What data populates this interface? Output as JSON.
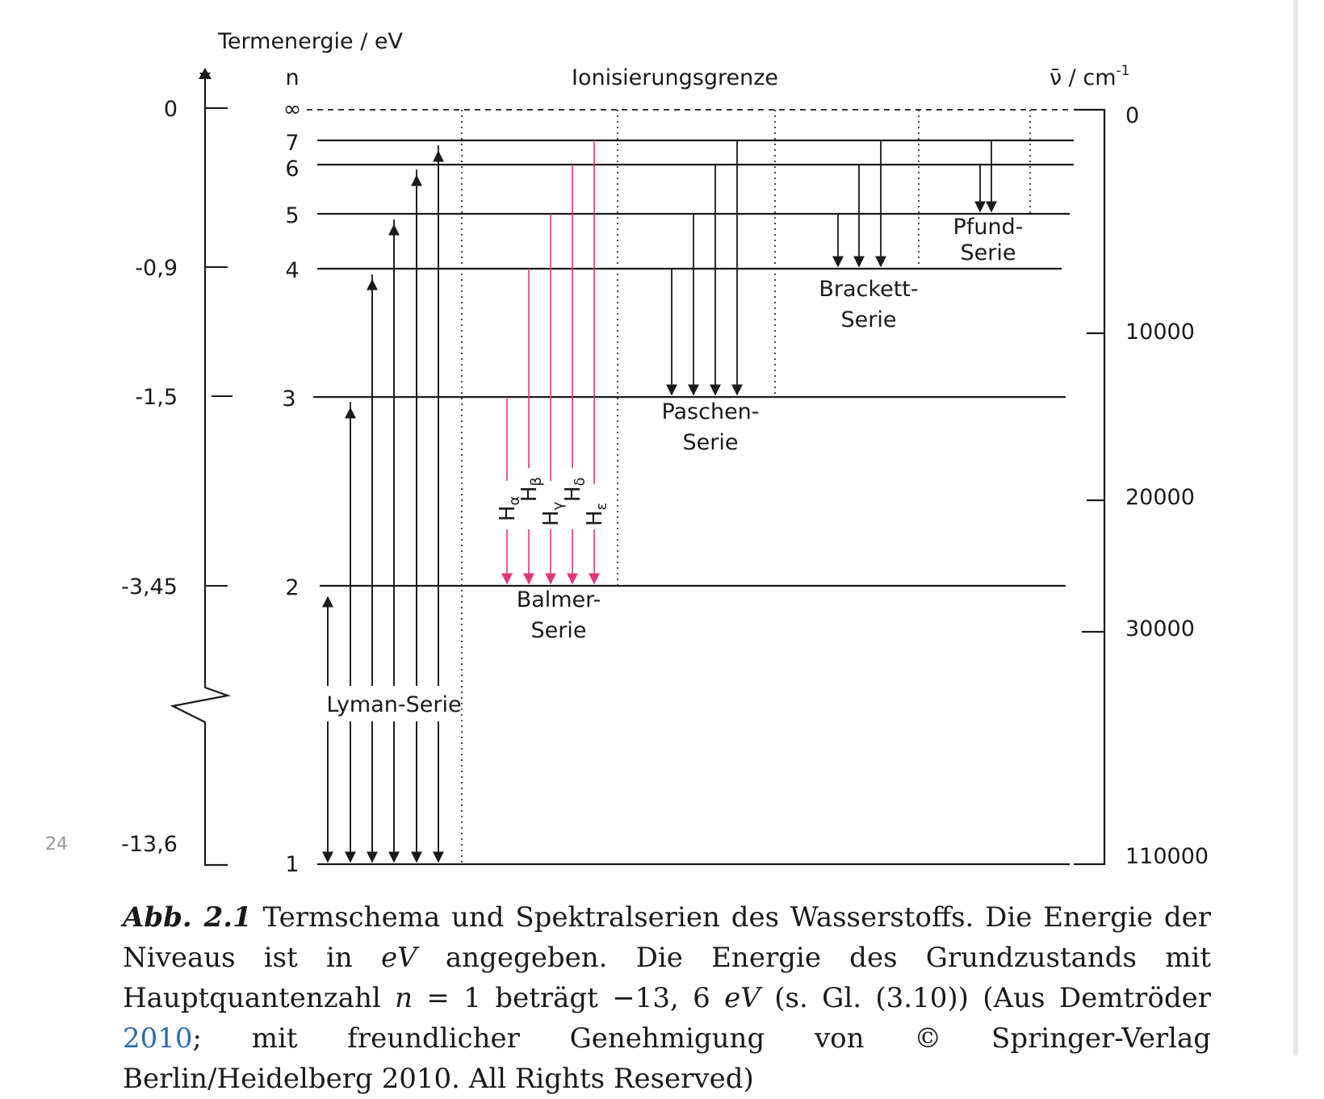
{
  "figure": {
    "y_axis_title": "Termenergie / eV",
    "n_header": "n",
    "ionization_label": "Ionisierungsgrenze",
    "wavenumber_title": "ν̄ / cm",
    "wavenumber_exp": "-1",
    "energy_ticks": [
      "0",
      "-0,9",
      "-1,5",
      "-3,45",
      "-13,6"
    ],
    "n_labels": [
      "∞",
      "7",
      "6",
      "5",
      "4",
      "3",
      "2",
      "1"
    ],
    "wavenumber_ticks": [
      "0",
      "10000",
      "20000",
      "30000",
      "110000"
    ],
    "series": {
      "lyman": "Lyman-Serie",
      "balmer_1": "Balmer-",
      "balmer_2": "Serie",
      "paschen_1": "Paschen-",
      "paschen_2": "Serie",
      "brackett_1": "Brackett-",
      "brackett_2": "Serie",
      "pfund_1": "Pfund-",
      "pfund_2": "Serie"
    },
    "balmer_lines": [
      {
        "base": "H",
        "sub": "α"
      },
      {
        "base": "H",
        "sub": "β"
      },
      {
        "base": "H",
        "sub": "γ"
      },
      {
        "base": "H",
        "sub": "δ"
      },
      {
        "base": "H",
        "sub": "ε"
      }
    ],
    "balmer_color": "#e0357a",
    "line_color": "#1a1a1a"
  },
  "page_number": "24",
  "caption": {
    "lead": "Abb. 2.1",
    "t1": " Termschema und Spektralserien des Wasserstoffs. Die Energie der Niveaus ist in ",
    "ev1": "eV",
    "t2": " angegeben. Die Energie des Grundzustands mit Hauptquanten­zahl ",
    "n": "n",
    "t3": " = 1 beträgt −13, 6 ",
    "ev2": "eV",
    "t4": " (s. Gl. (3.10)) (Aus Demtröder ",
    "year_link": "2010",
    "t5": "; mit freundlicher Genehmigung von © Springer-Verlag Berlin/Heidelberg 2010. All Rights Reserved)"
  }
}
